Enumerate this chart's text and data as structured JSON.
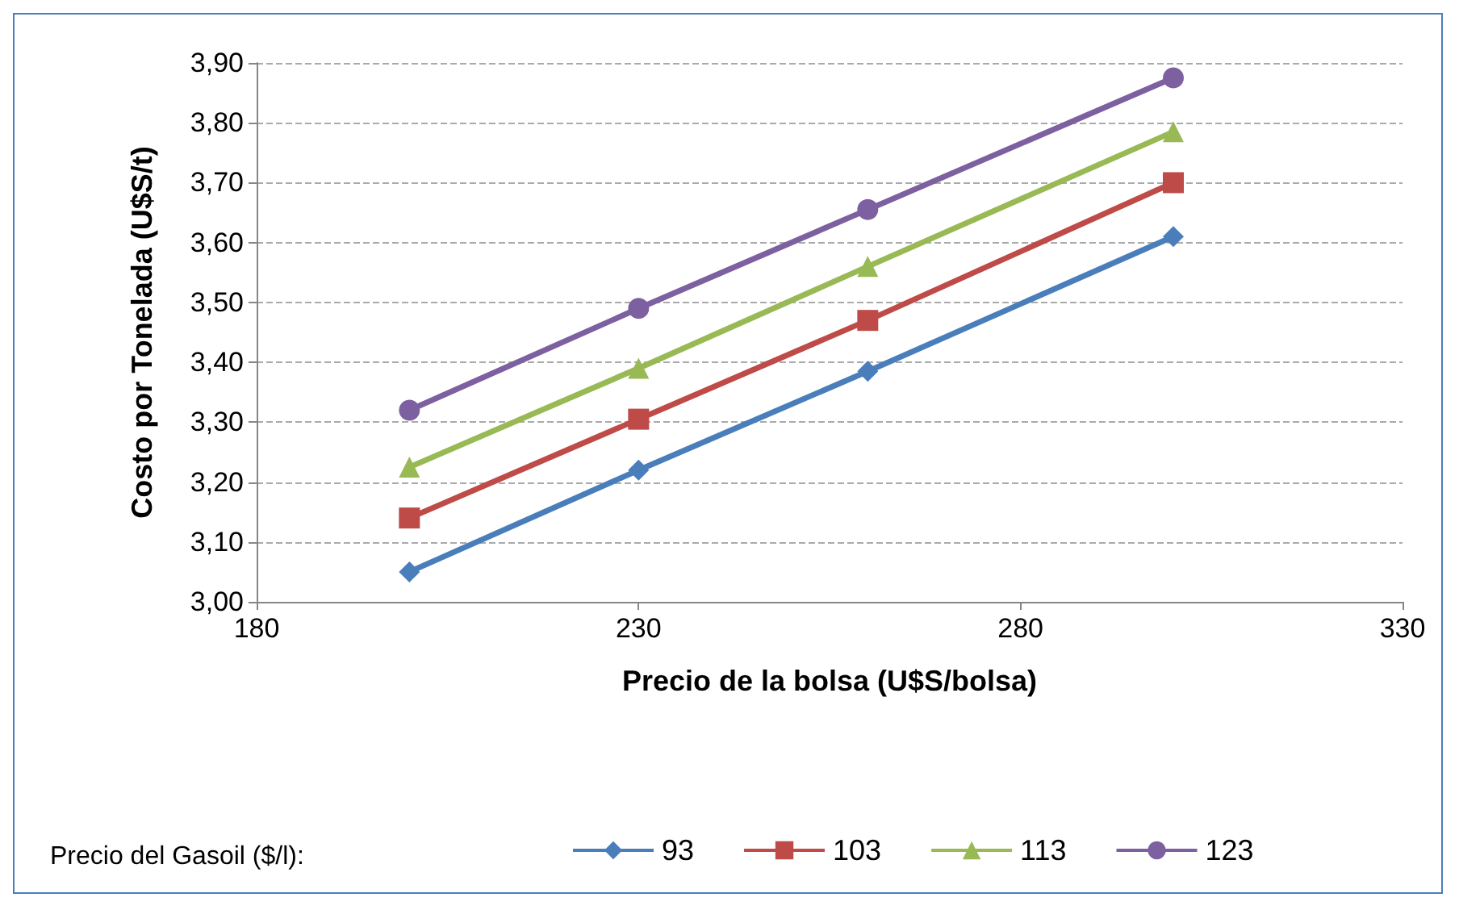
{
  "chart_data": {
    "type": "line",
    "xlabel": "Precio de la bolsa (U$S/bolsa)",
    "ylabel": "Costo por Tonelada (U$S/t)",
    "legend_title": "Precio del Gasoil ($/l):",
    "x": [
      200,
      230,
      260,
      300
    ],
    "series": [
      {
        "name": "93",
        "color": "#4a7ebb",
        "marker": "diamond",
        "values": [
          3.05,
          3.22,
          3.385,
          3.61
        ]
      },
      {
        "name": "103",
        "color": "#be4b48",
        "marker": "square",
        "values": [
          3.14,
          3.305,
          3.47,
          3.7
        ]
      },
      {
        "name": "113",
        "color": "#98b954",
        "marker": "triangle",
        "values": [
          3.225,
          3.39,
          3.56,
          3.785
        ]
      },
      {
        "name": "123",
        "color": "#7d60a0",
        "marker": "circle",
        "values": [
          3.32,
          3.49,
          3.655,
          3.875
        ]
      }
    ],
    "xlim": [
      180,
      330
    ],
    "xticks": [
      180,
      230,
      280,
      330
    ],
    "ylim": [
      3,
      3.9
    ],
    "yticks": [
      {
        "value": 3,
        "label": "3,00"
      },
      {
        "value": 3.1,
        "label": "3,10"
      },
      {
        "value": 3.2,
        "label": "3,20"
      },
      {
        "value": 3.3,
        "label": "3,30"
      },
      {
        "value": 3.4,
        "label": "3,40"
      },
      {
        "value": 3.5,
        "label": "3,50"
      },
      {
        "value": 3.6,
        "label": "3,60"
      },
      {
        "value": 3.7,
        "label": "3,70"
      },
      {
        "value": 3.8,
        "label": "3,80"
      },
      {
        "value": 3.9,
        "label": "3,90"
      }
    ],
    "grid": "y",
    "legend": "bottom",
    "line_style": "solid"
  }
}
